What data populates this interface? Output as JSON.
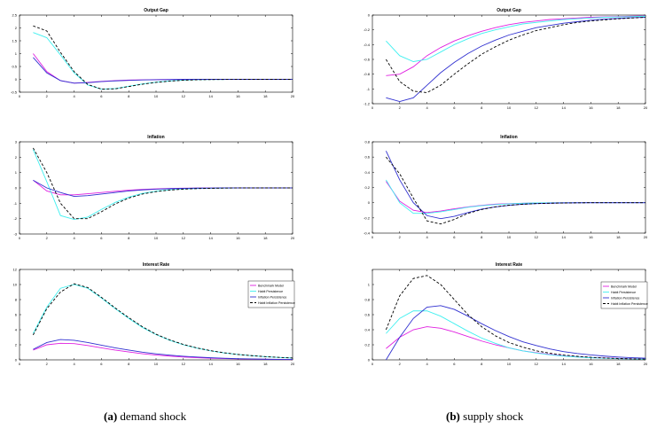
{
  "captions": {
    "a_tag": "(a)",
    "a_text": " demand shock",
    "b_tag": "(b)",
    "b_text": " supply shock"
  },
  "legend_labels": [
    "Benchmark Model",
    "Habit Persistence",
    "Inflation Persistence",
    "Habit Inflation Persistence"
  ],
  "series_colors": [
    "#e020e0",
    "#40f0f0",
    "#3030d0",
    "#000000"
  ],
  "chart_data": [
    {
      "id": "a1",
      "type": "line",
      "title": "Output Gap",
      "xlim": [
        0,
        20
      ],
      "ylim": [
        -0.5,
        2.5
      ],
      "xticks": [
        0,
        2,
        4,
        6,
        8,
        10,
        12,
        14,
        16,
        18,
        20
      ],
      "yticks": [
        -0.5,
        0,
        0.5,
        1,
        1.5,
        2,
        2.5
      ],
      "ytick_labels": [
        "-0.5",
        "0",
        "0.5",
        "1",
        "1.5",
        "2",
        "2.5"
      ],
      "x": [
        1,
        2,
        3,
        4,
        5,
        6,
        7,
        8,
        9,
        10,
        11,
        12,
        13,
        14,
        15,
        16,
        17,
        18,
        19,
        20
      ],
      "series": [
        {
          "name": "Benchmark Model",
          "values": [
            1.0,
            0.3,
            -0.05,
            -0.15,
            -0.12,
            -0.08,
            -0.05,
            -0.03,
            -0.02,
            -0.01,
            -0.005,
            0,
            0,
            0,
            0,
            0,
            0,
            0,
            0,
            0
          ]
        },
        {
          "name": "Habit Persistence",
          "values": [
            1.82,
            1.62,
            0.95,
            0.25,
            -0.22,
            -0.38,
            -0.36,
            -0.27,
            -0.18,
            -0.11,
            -0.06,
            -0.03,
            -0.015,
            -0.008,
            -0.004,
            0,
            0,
            0,
            0,
            0
          ]
        },
        {
          "name": "Inflation Persistence",
          "values": [
            0.85,
            0.25,
            -0.05,
            -0.15,
            -0.13,
            -0.09,
            -0.06,
            -0.04,
            -0.025,
            -0.015,
            -0.008,
            -0.004,
            0,
            0,
            0,
            0,
            0,
            0,
            0,
            0
          ]
        },
        {
          "name": "Habit Inflation Persistence",
          "values": [
            2.08,
            1.88,
            1.05,
            0.3,
            -0.2,
            -0.38,
            -0.37,
            -0.28,
            -0.19,
            -0.12,
            -0.07,
            -0.035,
            -0.018,
            -0.009,
            -0.004,
            0,
            0,
            0,
            0,
            0
          ]
        }
      ]
    },
    {
      "id": "b1",
      "type": "line",
      "title": "Output Gap",
      "xlim": [
        0,
        20
      ],
      "ylim": [
        -1.2,
        0
      ],
      "xticks": [
        0,
        2,
        4,
        6,
        8,
        10,
        12,
        14,
        16,
        18,
        20
      ],
      "yticks": [
        -1.2,
        -1,
        -0.8,
        -0.6,
        -0.4,
        -0.2,
        0
      ],
      "ytick_labels": [
        "-1.2",
        "-1",
        "-0.8",
        "-0.6",
        "-0.4",
        "-0.2",
        "0"
      ],
      "x": [
        1,
        2,
        3,
        4,
        5,
        6,
        7,
        8,
        9,
        10,
        11,
        12,
        13,
        14,
        15,
        16,
        17,
        18,
        19,
        20
      ],
      "series": [
        {
          "name": "Benchmark Model",
          "values": [
            -0.82,
            -0.8,
            -0.7,
            -0.55,
            -0.44,
            -0.35,
            -0.28,
            -0.22,
            -0.17,
            -0.13,
            -0.1,
            -0.08,
            -0.06,
            -0.05,
            -0.04,
            -0.03,
            -0.025,
            -0.02,
            -0.015,
            -0.01
          ]
        },
        {
          "name": "Habit Persistence",
          "values": [
            -0.35,
            -0.55,
            -0.63,
            -0.6,
            -0.5,
            -0.4,
            -0.32,
            -0.25,
            -0.2,
            -0.16,
            -0.12,
            -0.1,
            -0.08,
            -0.06,
            -0.05,
            -0.04,
            -0.03,
            -0.025,
            -0.02,
            -0.015
          ]
        },
        {
          "name": "Inflation Persistence",
          "values": [
            -1.12,
            -1.17,
            -1.12,
            -0.95,
            -0.78,
            -0.64,
            -0.52,
            -0.42,
            -0.34,
            -0.27,
            -0.22,
            -0.17,
            -0.14,
            -0.11,
            -0.09,
            -0.07,
            -0.055,
            -0.045,
            -0.035,
            -0.03
          ]
        },
        {
          "name": "Habit Inflation Persistence",
          "values": [
            -0.6,
            -0.9,
            -1.03,
            -1.05,
            -0.95,
            -0.8,
            -0.66,
            -0.53,
            -0.43,
            -0.34,
            -0.27,
            -0.21,
            -0.17,
            -0.13,
            -0.1,
            -0.08,
            -0.065,
            -0.05,
            -0.04,
            -0.03
          ]
        }
      ]
    },
    {
      "id": "a2",
      "type": "line",
      "title": "Inflation",
      "xlim": [
        0,
        20
      ],
      "ylim": [
        -3,
        3
      ],
      "xticks": [
        0,
        2,
        4,
        6,
        8,
        10,
        12,
        14,
        16,
        18,
        20
      ],
      "yticks": [
        -3,
        -2,
        -1,
        0,
        1,
        2,
        3
      ],
      "ytick_labels": [
        "-3",
        "-2",
        "-1",
        "0",
        "1",
        "2",
        "3"
      ],
      "x": [
        1,
        2,
        3,
        4,
        5,
        6,
        7,
        8,
        9,
        10,
        11,
        12,
        13,
        14,
        15,
        16,
        17,
        18,
        19,
        20
      ],
      "series": [
        {
          "name": "Benchmark Model",
          "values": [
            0.5,
            -0.2,
            -0.45,
            -0.45,
            -0.38,
            -0.3,
            -0.22,
            -0.15,
            -0.1,
            -0.06,
            -0.035,
            -0.02,
            -0.01,
            -0.005,
            0,
            0,
            0,
            0,
            0,
            0
          ]
        },
        {
          "name": "Habit Persistence",
          "values": [
            2.5,
            0.4,
            -1.8,
            -2.05,
            -1.9,
            -1.4,
            -0.95,
            -0.6,
            -0.36,
            -0.21,
            -0.12,
            -0.07,
            -0.04,
            -0.02,
            -0.01,
            0,
            0,
            0,
            0,
            0
          ]
        },
        {
          "name": "Inflation Persistence",
          "values": [
            0.5,
            0.0,
            -0.3,
            -0.55,
            -0.5,
            -0.4,
            -0.3,
            -0.2,
            -0.13,
            -0.08,
            -0.05,
            -0.03,
            -0.015,
            -0.008,
            0,
            0,
            0,
            0,
            0,
            0
          ]
        },
        {
          "name": "Habit Inflation Persistence",
          "values": [
            2.6,
            1.0,
            -1.0,
            -2.0,
            -2.0,
            -1.55,
            -1.05,
            -0.66,
            -0.4,
            -0.24,
            -0.14,
            -0.08,
            -0.045,
            -0.025,
            -0.012,
            0,
            0,
            0,
            0,
            0
          ]
        }
      ]
    },
    {
      "id": "b2",
      "type": "line",
      "title": "Inflation",
      "xlim": [
        0,
        20
      ],
      "ylim": [
        -0.4,
        0.8
      ],
      "xticks": [
        0,
        2,
        4,
        6,
        8,
        10,
        12,
        14,
        16,
        18,
        20
      ],
      "yticks": [
        -0.4,
        -0.2,
        0,
        0.2,
        0.4,
        0.6,
        0.8
      ],
      "ytick_labels": [
        "-0.4",
        "-0.2",
        "0",
        "0.2",
        "0.4",
        "0.6",
        "0.8"
      ],
      "x": [
        1,
        2,
        3,
        4,
        5,
        6,
        7,
        8,
        9,
        10,
        11,
        12,
        13,
        14,
        15,
        16,
        17,
        18,
        19,
        20
      ],
      "series": [
        {
          "name": "Benchmark Model",
          "values": [
            0.28,
            0.02,
            -0.1,
            -0.13,
            -0.11,
            -0.08,
            -0.055,
            -0.035,
            -0.02,
            -0.012,
            -0.007,
            -0.004,
            -0.002,
            0,
            0,
            0,
            0,
            0,
            0,
            0
          ]
        },
        {
          "name": "Habit Persistence",
          "values": [
            0.3,
            0.0,
            -0.14,
            -0.14,
            -0.12,
            -0.09,
            -0.06,
            -0.04,
            -0.025,
            -0.015,
            -0.008,
            -0.004,
            -0.002,
            0,
            0,
            0,
            0,
            0,
            0,
            0
          ]
        },
        {
          "name": "Inflation Persistence",
          "values": [
            0.68,
            0.3,
            0.0,
            -0.17,
            -0.21,
            -0.18,
            -0.13,
            -0.085,
            -0.055,
            -0.035,
            -0.02,
            -0.012,
            -0.007,
            -0.004,
            -0.002,
            0,
            0,
            0,
            0,
            0
          ]
        },
        {
          "name": "Habit Inflation Persistence",
          "values": [
            0.6,
            0.38,
            0.06,
            -0.24,
            -0.28,
            -0.22,
            -0.14,
            -0.09,
            -0.055,
            -0.033,
            -0.02,
            -0.012,
            -0.007,
            -0.004,
            -0.002,
            0,
            0,
            0,
            0,
            0
          ]
        }
      ]
    },
    {
      "id": "a3",
      "type": "line",
      "title": "Interest Rate",
      "xlim": [
        0,
        20
      ],
      "ylim": [
        0,
        12
      ],
      "xticks": [
        0,
        2,
        4,
        6,
        8,
        10,
        12,
        14,
        16,
        18,
        20
      ],
      "yticks": [
        0,
        2,
        4,
        6,
        8,
        10,
        12
      ],
      "ytick_labels": [
        "0",
        "2",
        "4",
        "6",
        "8",
        "10",
        "12"
      ],
      "legend": true,
      "legend_position": "top-right",
      "x": [
        1,
        2,
        3,
        4,
        5,
        6,
        7,
        8,
        9,
        10,
        11,
        12,
        13,
        14,
        15,
        16,
        17,
        18,
        19,
        20
      ],
      "series": [
        {
          "name": "Benchmark Model",
          "values": [
            1.3,
            2.0,
            2.2,
            2.15,
            1.9,
            1.6,
            1.3,
            1.05,
            0.82,
            0.64,
            0.5,
            0.38,
            0.29,
            0.22,
            0.17,
            0.13,
            0.1,
            0.075,
            0.055,
            0.04
          ]
        },
        {
          "name": "Habit Persistence",
          "values": [
            3.5,
            7.0,
            9.5,
            10.0,
            9.5,
            8.2,
            6.8,
            5.5,
            4.3,
            3.35,
            2.6,
            2.0,
            1.55,
            1.2,
            0.92,
            0.71,
            0.55,
            0.42,
            0.32,
            0.25
          ]
        },
        {
          "name": "Inflation Persistence",
          "values": [
            1.4,
            2.3,
            2.7,
            2.6,
            2.3,
            1.95,
            1.6,
            1.3,
            1.02,
            0.8,
            0.62,
            0.48,
            0.37,
            0.28,
            0.21,
            0.16,
            0.12,
            0.09,
            0.07,
            0.05
          ]
        },
        {
          "name": "Habit Inflation Persistence",
          "values": [
            3.3,
            6.8,
            9.0,
            10.1,
            9.6,
            8.3,
            6.9,
            5.6,
            4.4,
            3.4,
            2.65,
            2.05,
            1.58,
            1.22,
            0.94,
            0.72,
            0.56,
            0.43,
            0.33,
            0.25
          ]
        }
      ]
    },
    {
      "id": "b3",
      "type": "line",
      "title": "Interest Rate",
      "xlim": [
        0,
        20
      ],
      "ylim": [
        0,
        1.2
      ],
      "xticks": [
        0,
        2,
        4,
        6,
        8,
        10,
        12,
        14,
        16,
        18,
        20
      ],
      "yticks": [
        0,
        0.2,
        0.4,
        0.6,
        0.8,
        1
      ],
      "ytick_labels": [
        "0",
        "0.2",
        "0.4",
        "0.6",
        "0.8",
        "1"
      ],
      "legend": true,
      "legend_position": "right",
      "x": [
        1,
        2,
        3,
        4,
        5,
        6,
        7,
        8,
        9,
        10,
        11,
        12,
        13,
        14,
        15,
        16,
        17,
        18,
        19,
        20
      ],
      "series": [
        {
          "name": "Benchmark Model",
          "values": [
            0.15,
            0.3,
            0.4,
            0.44,
            0.42,
            0.37,
            0.31,
            0.25,
            0.2,
            0.16,
            0.12,
            0.095,
            0.072,
            0.055,
            0.042,
            0.032,
            0.025,
            0.019,
            0.015,
            0.011
          ]
        },
        {
          "name": "Habit Persistence",
          "values": [
            0.35,
            0.55,
            0.65,
            0.65,
            0.58,
            0.48,
            0.38,
            0.29,
            0.22,
            0.16,
            0.12,
            0.09,
            0.067,
            0.05,
            0.037,
            0.028,
            0.021,
            0.016,
            0.012,
            0.009
          ]
        },
        {
          "name": "Inflation Persistence",
          "values": [
            0.0,
            0.3,
            0.55,
            0.7,
            0.72,
            0.67,
            0.58,
            0.48,
            0.39,
            0.31,
            0.24,
            0.19,
            0.145,
            0.11,
            0.085,
            0.065,
            0.05,
            0.038,
            0.029,
            0.022
          ]
        },
        {
          "name": "Habit Inflation Persistence",
          "values": [
            0.4,
            0.85,
            1.08,
            1.12,
            1.0,
            0.8,
            0.6,
            0.44,
            0.32,
            0.23,
            0.17,
            0.12,
            0.088,
            0.064,
            0.047,
            0.034,
            0.025,
            0.018,
            0.013,
            0.01
          ]
        }
      ]
    }
  ]
}
